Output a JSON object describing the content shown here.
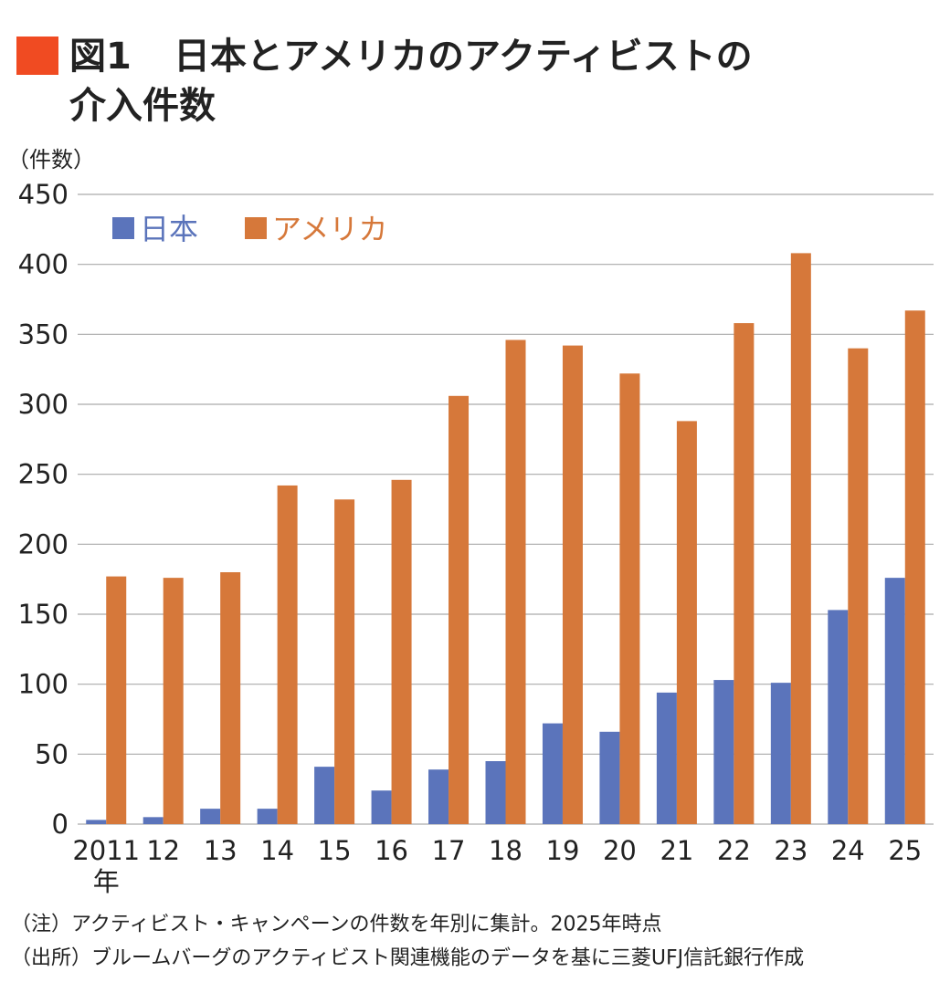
{
  "chart_data": {
    "type": "bar",
    "figure_label": "図1",
    "title_lines": [
      "日本とアメリカのアクティビストの",
      "介入件数"
    ],
    "y_axis_label": "（件数）",
    "categories": [
      "2011",
      "12",
      "13",
      "14",
      "15",
      "16",
      "17",
      "18",
      "19",
      "20",
      "21",
      "22",
      "23",
      "24",
      "25"
    ],
    "x_unit": "年",
    "series": [
      {
        "name": "日本",
        "color": "#5b74bb",
        "values": [
          3,
          5,
          11,
          11,
          41,
          24,
          39,
          45,
          72,
          66,
          94,
          103,
          101,
          153,
          176
        ]
      },
      {
        "name": "アメリカ",
        "color": "#d6783a",
        "values": [
          177,
          176,
          180,
          242,
          232,
          246,
          306,
          346,
          342,
          322,
          288,
          358,
          408,
          340,
          367
        ]
      }
    ],
    "ylim": [
      0,
      450
    ],
    "yticks": [
      0,
      50,
      100,
      150,
      200,
      250,
      300,
      350,
      400,
      450
    ],
    "grid": true,
    "notes": [
      "（注）アクティビスト・キャンペーンの件数を年別に集計。2025年時点",
      "（出所）ブルームバーグのアクティビスト関連機能のデータを基に三菱UFJ信託銀行作成"
    ]
  }
}
